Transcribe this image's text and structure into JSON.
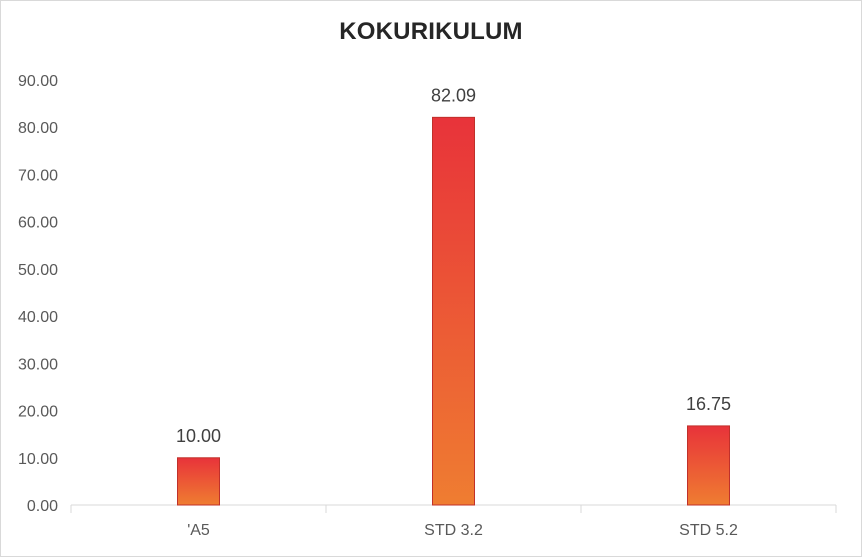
{
  "chart_data": {
    "type": "bar",
    "title": "KOKURIKULUM",
    "xlabel": "",
    "ylabel": "",
    "categories": [
      "'A5",
      "STD 3.2",
      "STD 5.2"
    ],
    "values": [
      10.0,
      82.09,
      16.75
    ],
    "data_labels": [
      "10.00",
      "82.09",
      "16.75"
    ],
    "ylim": [
      0,
      90
    ],
    "ytick_step": 10,
    "ytick_labels": [
      "0.00",
      "10.00",
      "20.00",
      "30.00",
      "40.00",
      "50.00",
      "60.00",
      "70.00",
      "80.00",
      "90.00"
    ],
    "grid": false,
    "legend": "none",
    "bar_gradient_top": "#e8333a",
    "bar_gradient_bottom": "#ef7d31",
    "bar_outline": "#c0302a",
    "axis_color": "#d9d9d9"
  }
}
